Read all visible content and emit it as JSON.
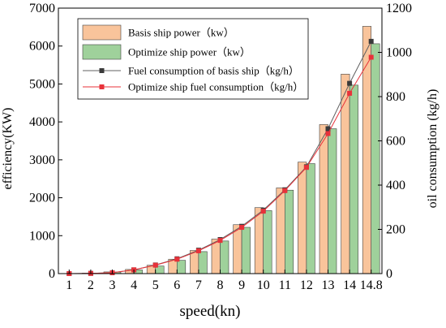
{
  "chart_data": {
    "type": "bar",
    "xlabel": "speed(kn)",
    "ylabel": "efficiency(KW)",
    "y2label": "oil consumption  (kg/h)",
    "categories": [
      "1",
      "2",
      "3",
      "4",
      "5",
      "6",
      "7",
      "8",
      "9",
      "10",
      "11",
      "12",
      "13",
      "14",
      "14.8"
    ],
    "ylim": [
      0,
      7000
    ],
    "yticks": [
      0,
      1000,
      2000,
      3000,
      4000,
      5000,
      6000,
      7000
    ],
    "y2lim": [
      0,
      1200
    ],
    "y2ticks": [
      0,
      200,
      400,
      600,
      800,
      1000,
      1200
    ],
    "series": [
      {
        "name": "Basis ship power（kw）",
        "kind": "bar",
        "axis": "left",
        "color": "#f9c49b",
        "values": [
          2,
          12,
          45,
          110,
          220,
          380,
          610,
          910,
          1290,
          1740,
          2260,
          2940,
          3930,
          5260,
          6520
        ]
      },
      {
        "name": "Optimize ship power（kw）",
        "kind": "bar",
        "axis": "left",
        "color": "#9fd19b",
        "values": [
          2,
          10,
          40,
          98,
          200,
          350,
          580,
          860,
          1220,
          1660,
          2200,
          2900,
          3820,
          4970,
          6060
        ]
      },
      {
        "name": "Fuel consumption of basis ship（kg/h）",
        "kind": "line",
        "axis": "right",
        "color": "#3a3a3a",
        "line_color": "#606060",
        "marker": "square",
        "values": [
          0,
          1,
          4,
          17,
          39,
          67,
          106,
          154,
          214,
          287,
          379,
          483,
          655,
          860,
          1050
        ]
      },
      {
        "name": "Optimize ship fuel consumption（kg/h）",
        "kind": "line",
        "axis": "right",
        "color": "#e8323a",
        "line_color": "#e8323a",
        "marker": "square",
        "values": [
          0,
          1,
          4,
          17,
          38,
          65,
          103,
          150,
          209,
          282,
          375,
          480,
          633,
          815,
          978
        ]
      }
    ],
    "legend_position": "top-left",
    "grid": false
  }
}
